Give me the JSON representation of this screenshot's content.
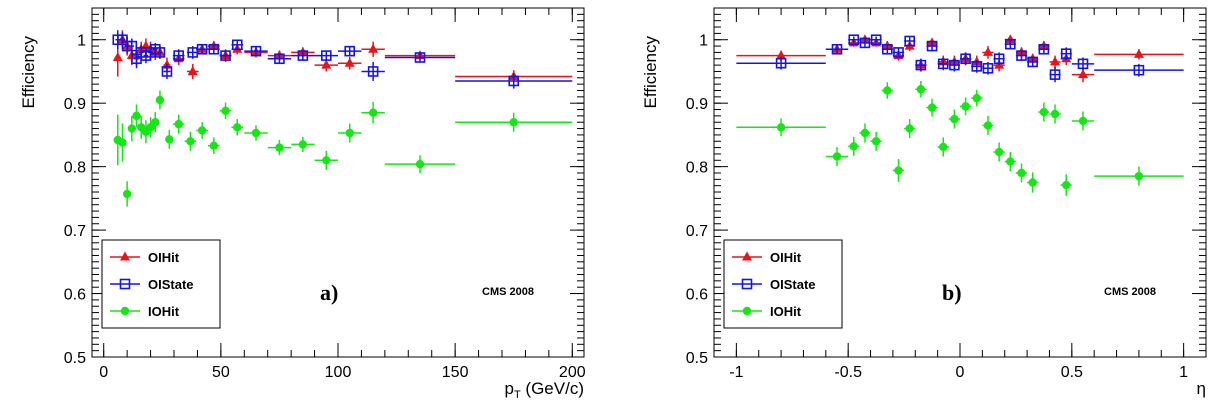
{
  "colors": {
    "OIHit": "#e8141a",
    "OIState": "#1414e8",
    "IOHit": "#14e814"
  },
  "chart_data": [
    {
      "type": "scatter",
      "panel_label": "a)",
      "cms_label": "CMS 2008",
      "xlabel": "p_T (GeV/c)",
      "ylabel": "Efficiency",
      "xlim": [
        -5,
        205
      ],
      "ylim": [
        0.5,
        1.05
      ],
      "xticks": [
        0,
        50,
        100,
        150,
        200
      ],
      "xtick_labels": [
        "0",
        "50",
        "100",
        "150",
        "200"
      ],
      "yticks": [
        0.5,
        0.6,
        0.7,
        0.8,
        0.9,
        1.0
      ],
      "ytick_labels": [
        "0.5",
        "0.6",
        "0.7",
        "0.8",
        "0.9",
        "1"
      ],
      "legend_position": "bottom-left",
      "series": [
        {
          "name": "OIHit",
          "marker": "triangle",
          "color": "#e8141a",
          "points": [
            [
              6,
              0.972,
              1,
              0.03
            ],
            [
              8,
              1.0,
              1,
              0.015
            ],
            [
              10,
              0.99,
              1,
              0.015
            ],
            [
              12,
              0.975,
              1,
              0.015
            ],
            [
              14,
              0.975,
              1,
              0.015
            ],
            [
              16,
              0.985,
              1,
              0.012
            ],
            [
              18,
              0.99,
              1,
              0.012
            ],
            [
              20,
              0.985,
              1,
              0.012
            ],
            [
              22,
              0.98,
              1,
              0.012
            ],
            [
              24,
              0.98,
              1,
              0.01
            ],
            [
              27,
              0.96,
              1.5,
              0.012
            ],
            [
              32,
              0.97,
              2.5,
              0.01
            ],
            [
              38,
              0.95,
              2.5,
              0.012
            ],
            [
              42,
              0.985,
              2.5,
              0.008
            ],
            [
              47,
              0.99,
              2.5,
              0.008
            ],
            [
              52,
              0.975,
              2.5,
              0.01
            ],
            [
              57,
              0.985,
              2.5,
              0.008
            ],
            [
              65,
              0.98,
              5,
              0.008
            ],
            [
              75,
              0.975,
              5,
              0.008
            ],
            [
              85,
              0.98,
              5,
              0.008
            ],
            [
              95,
              0.96,
              5,
              0.01
            ],
            [
              105,
              0.963,
              5,
              0.01
            ],
            [
              115,
              0.985,
              5,
              0.012
            ],
            [
              135,
              0.975,
              15,
              0.006
            ],
            [
              175,
              0.942,
              25,
              0.01
            ]
          ]
        },
        {
          "name": "OIState",
          "marker": "open-square",
          "color": "#1414e8",
          "points": [
            [
              6,
              1.0,
              1,
              0.015
            ],
            [
              8,
              1.0,
              1,
              0.012
            ],
            [
              10,
              0.99,
              1,
              0.012
            ],
            [
              12,
              0.99,
              1,
              0.012
            ],
            [
              14,
              0.97,
              1,
              0.015
            ],
            [
              16,
              0.98,
              1,
              0.012
            ],
            [
              18,
              0.975,
              1,
              0.012
            ],
            [
              20,
              0.98,
              1,
              0.012
            ],
            [
              22,
              0.985,
              1,
              0.01
            ],
            [
              24,
              0.98,
              1,
              0.01
            ],
            [
              27,
              0.95,
              1.5,
              0.012
            ],
            [
              32,
              0.975,
              2.5,
              0.01
            ],
            [
              38,
              0.98,
              2.5,
              0.01
            ],
            [
              42,
              0.985,
              2.5,
              0.008
            ],
            [
              47,
              0.985,
              2.5,
              0.008
            ],
            [
              52,
              0.975,
              2.5,
              0.008
            ],
            [
              57,
              0.992,
              2.5,
              0.006
            ],
            [
              65,
              0.982,
              5,
              0.006
            ],
            [
              75,
              0.97,
              5,
              0.008
            ],
            [
              85,
              0.975,
              5,
              0.008
            ],
            [
              95,
              0.975,
              5,
              0.008
            ],
            [
              105,
              0.982,
              5,
              0.008
            ],
            [
              115,
              0.95,
              5,
              0.015
            ],
            [
              135,
              0.972,
              15,
              0.008
            ],
            [
              175,
              0.935,
              25,
              0.012
            ]
          ]
        },
        {
          "name": "IOHit",
          "marker": "circle",
          "color": "#14e814",
          "points": [
            [
              6,
              0.842,
              1,
              0.04
            ],
            [
              8,
              0.838,
              1,
              0.03
            ],
            [
              10,
              0.757,
              1,
              0.02
            ],
            [
              12,
              0.86,
              1,
              0.02
            ],
            [
              14,
              0.88,
              1,
              0.018
            ],
            [
              16,
              0.862,
              1,
              0.018
            ],
            [
              18,
              0.855,
              1,
              0.018
            ],
            [
              20,
              0.862,
              1,
              0.016
            ],
            [
              22,
              0.87,
              1,
              0.016
            ],
            [
              24,
              0.905,
              1,
              0.015
            ],
            [
              28,
              0.843,
              1.5,
              0.015
            ],
            [
              32,
              0.867,
              2.5,
              0.015
            ],
            [
              37,
              0.84,
              2.5,
              0.015
            ],
            [
              42,
              0.857,
              2.5,
              0.013
            ],
            [
              47,
              0.833,
              2.5,
              0.013
            ],
            [
              52,
              0.888,
              2.5,
              0.013
            ],
            [
              57,
              0.862,
              2.5,
              0.013
            ],
            [
              65,
              0.853,
              5,
              0.012
            ],
            [
              75,
              0.83,
              5,
              0.012
            ],
            [
              85,
              0.835,
              5,
              0.012
            ],
            [
              95,
              0.81,
              5,
              0.015
            ],
            [
              105,
              0.853,
              5,
              0.015
            ],
            [
              115,
              0.885,
              5,
              0.017
            ],
            [
              135,
              0.804,
              15,
              0.014
            ],
            [
              175,
              0.87,
              25,
              0.015
            ]
          ]
        }
      ]
    },
    {
      "type": "scatter",
      "panel_label": "b)",
      "cms_label": "CMS 2008",
      "xlabel": "η",
      "ylabel": "Efficiency",
      "xlim": [
        -1.1,
        1.1
      ],
      "ylim": [
        0.5,
        1.05
      ],
      "xticks": [
        -1,
        -0.5,
        0,
        0.5,
        1
      ],
      "xtick_labels": [
        "-1",
        "-0.5",
        "0",
        "0.5",
        "1"
      ],
      "yticks": [
        0.5,
        0.6,
        0.7,
        0.8,
        0.9,
        1.0
      ],
      "ytick_labels": [
        "0.5",
        "0.6",
        "0.7",
        "0.8",
        "0.9",
        "1"
      ],
      "legend_position": "bottom-left",
      "series": [
        {
          "name": "OIHit",
          "marker": "triangle",
          "color": "#e8141a",
          "points": [
            [
              -0.8,
              0.975,
              0.2,
              0.008
            ],
            [
              -0.55,
              0.985,
              0.05,
              0.008
            ],
            [
              -0.475,
              0.995,
              0.025,
              0.006
            ],
            [
              -0.425,
              1.0,
              0.025,
              0.005
            ],
            [
              -0.375,
              0.995,
              0.025,
              0.006
            ],
            [
              -0.325,
              0.99,
              0.025,
              0.008
            ],
            [
              -0.275,
              0.975,
              0.025,
              0.008
            ],
            [
              -0.225,
              0.99,
              0.025,
              0.008
            ],
            [
              -0.175,
              0.96,
              0.025,
              0.01
            ],
            [
              -0.125,
              0.995,
              0.025,
              0.006
            ],
            [
              -0.075,
              0.965,
              0.025,
              0.01
            ],
            [
              -0.025,
              0.965,
              0.025,
              0.01
            ],
            [
              0.025,
              0.97,
              0.025,
              0.01
            ],
            [
              0.075,
              0.965,
              0.025,
              0.01
            ],
            [
              0.125,
              0.98,
              0.025,
              0.01
            ],
            [
              0.175,
              0.96,
              0.025,
              0.01
            ],
            [
              0.225,
              1.0,
              0.025,
              0.006
            ],
            [
              0.275,
              0.98,
              0.025,
              0.008
            ],
            [
              0.325,
              0.97,
              0.025,
              0.008
            ],
            [
              0.375,
              0.99,
              0.025,
              0.008
            ],
            [
              0.425,
              0.965,
              0.025,
              0.01
            ],
            [
              0.475,
              0.97,
              0.025,
              0.01
            ],
            [
              0.55,
              0.945,
              0.05,
              0.012
            ],
            [
              0.8,
              0.977,
              0.2,
              0.008
            ]
          ]
        },
        {
          "name": "OIState",
          "marker": "open-square",
          "color": "#1414e8",
          "points": [
            [
              -0.8,
              0.963,
              0.2,
              0.01
            ],
            [
              -0.55,
              0.985,
              0.05,
              0.008
            ],
            [
              -0.475,
              1.0,
              0.025,
              0.005
            ],
            [
              -0.425,
              0.995,
              0.025,
              0.006
            ],
            [
              -0.375,
              1.0,
              0.025,
              0.005
            ],
            [
              -0.325,
              0.985,
              0.025,
              0.008
            ],
            [
              -0.275,
              0.98,
              0.025,
              0.008
            ],
            [
              -0.225,
              0.998,
              0.025,
              0.006
            ],
            [
              -0.175,
              0.96,
              0.025,
              0.01
            ],
            [
              -0.125,
              0.99,
              0.025,
              0.008
            ],
            [
              -0.075,
              0.962,
              0.025,
              0.01
            ],
            [
              -0.025,
              0.96,
              0.025,
              0.01
            ],
            [
              0.025,
              0.97,
              0.025,
              0.01
            ],
            [
              0.075,
              0.958,
              0.025,
              0.01
            ],
            [
              0.125,
              0.955,
              0.025,
              0.01
            ],
            [
              0.175,
              0.97,
              0.025,
              0.01
            ],
            [
              0.225,
              0.993,
              0.025,
              0.006
            ],
            [
              0.275,
              0.975,
              0.025,
              0.008
            ],
            [
              0.325,
              0.965,
              0.025,
              0.008
            ],
            [
              0.375,
              0.985,
              0.025,
              0.008
            ],
            [
              0.425,
              0.945,
              0.025,
              0.012
            ],
            [
              0.475,
              0.978,
              0.025,
              0.01
            ],
            [
              0.55,
              0.962,
              0.05,
              0.01
            ],
            [
              0.8,
              0.952,
              0.2,
              0.01
            ]
          ]
        },
        {
          "name": "IOHit",
          "marker": "circle",
          "color": "#14e814",
          "points": [
            [
              -0.8,
              0.862,
              0.2,
              0.014
            ],
            [
              -0.55,
              0.816,
              0.05,
              0.015
            ],
            [
              -0.475,
              0.832,
              0.025,
              0.015
            ],
            [
              -0.425,
              0.853,
              0.025,
              0.015
            ],
            [
              -0.375,
              0.84,
              0.025,
              0.015
            ],
            [
              -0.325,
              0.92,
              0.025,
              0.013
            ],
            [
              -0.275,
              0.794,
              0.025,
              0.018
            ],
            [
              -0.225,
              0.86,
              0.025,
              0.015
            ],
            [
              -0.175,
              0.922,
              0.025,
              0.013
            ],
            [
              -0.125,
              0.893,
              0.025,
              0.014
            ],
            [
              -0.075,
              0.831,
              0.025,
              0.015
            ],
            [
              -0.025,
              0.875,
              0.025,
              0.015
            ],
            [
              0.025,
              0.895,
              0.025,
              0.014
            ],
            [
              0.075,
              0.908,
              0.025,
              0.013
            ],
            [
              0.125,
              0.865,
              0.025,
              0.015
            ],
            [
              0.175,
              0.823,
              0.025,
              0.015
            ],
            [
              0.225,
              0.808,
              0.025,
              0.015
            ],
            [
              0.275,
              0.79,
              0.025,
              0.015
            ],
            [
              0.325,
              0.775,
              0.025,
              0.016
            ],
            [
              0.375,
              0.886,
              0.025,
              0.015
            ],
            [
              0.425,
              0.883,
              0.025,
              0.015
            ],
            [
              0.475,
              0.771,
              0.025,
              0.017
            ],
            [
              0.55,
              0.872,
              0.05,
              0.015
            ],
            [
              0.8,
              0.785,
              0.2,
              0.015
            ]
          ]
        }
      ]
    }
  ]
}
